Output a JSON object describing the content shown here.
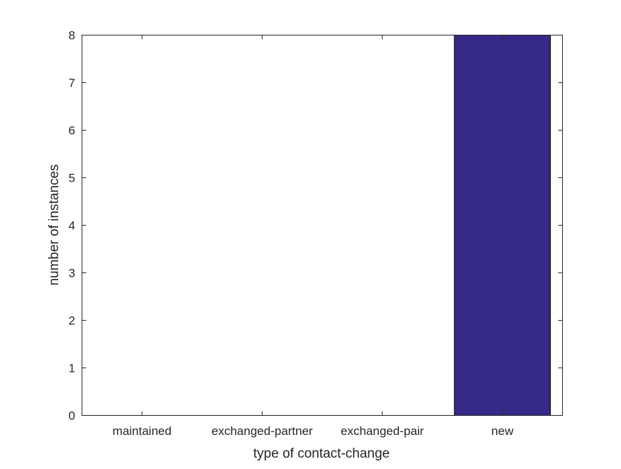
{
  "chart_data": {
    "type": "bar",
    "title": "",
    "categories": [
      "maintained",
      "exchanged-partner",
      "exchanged-pair",
      "new"
    ],
    "values": [
      0,
      0,
      0,
      8
    ],
    "xlabel": "type of contact-change",
    "ylabel": "number of instances",
    "ylim": [
      0,
      8
    ],
    "yticks": [
      0,
      1,
      2,
      3,
      4,
      5,
      6,
      7,
      8
    ],
    "bar_width": 0.8,
    "grid": false,
    "bar_color": "#352a87"
  }
}
